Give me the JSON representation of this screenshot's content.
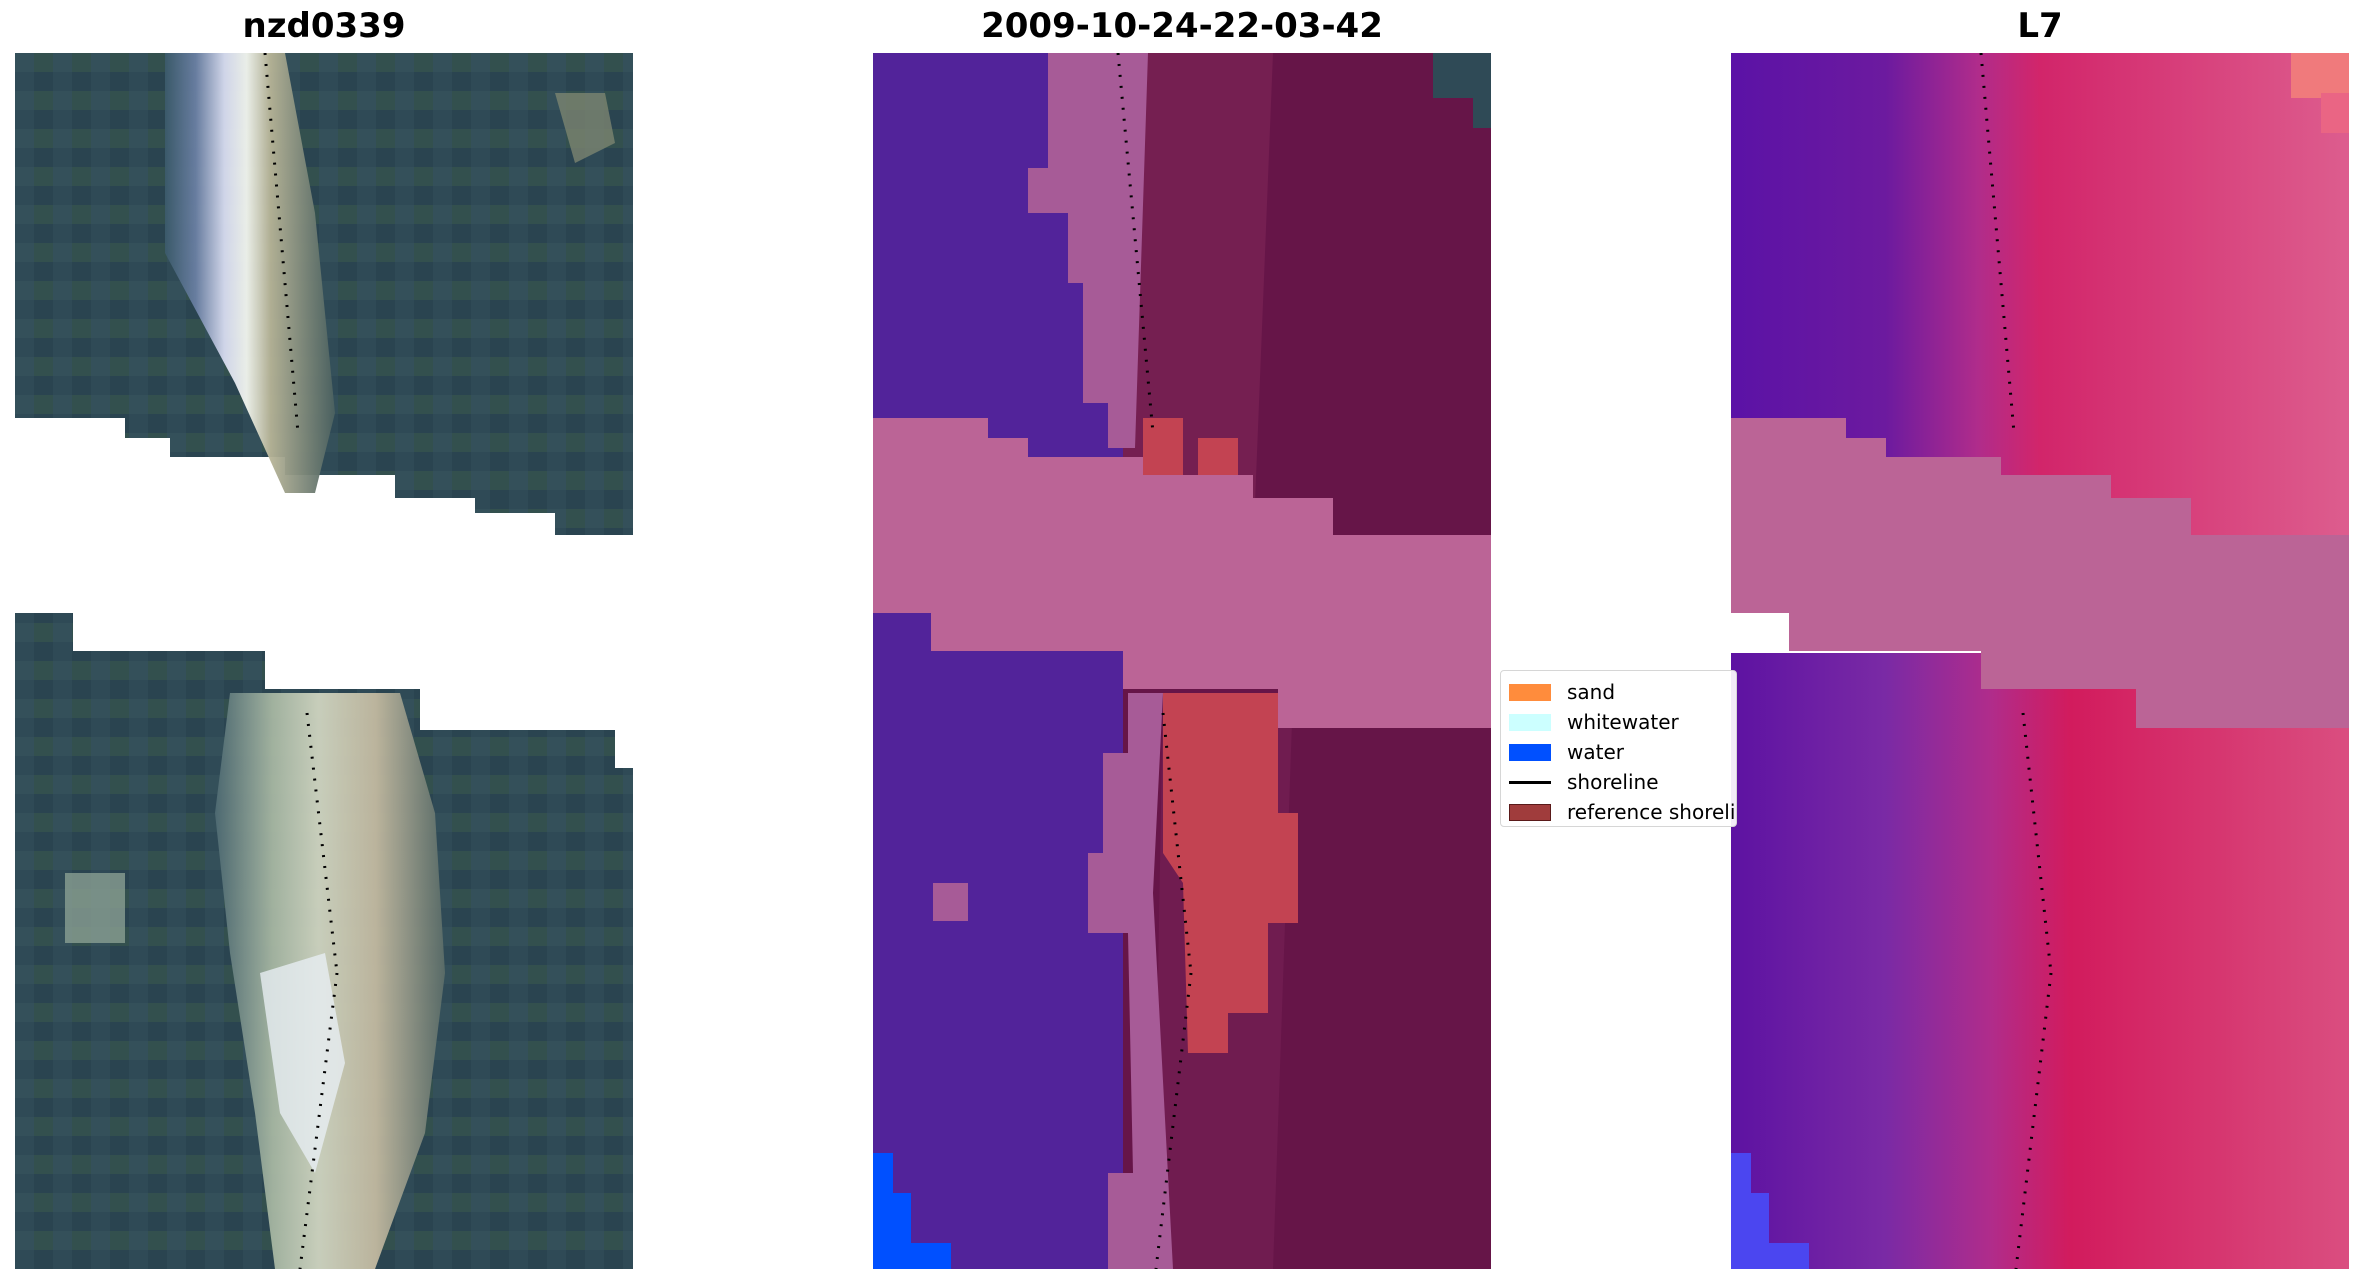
{
  "titles": {
    "site": "nzd0339",
    "date": "2009-10-24-22-03-42",
    "satellite": "L7"
  },
  "legend": [
    {
      "label": "sand",
      "color": "#ff8c3c",
      "kind": "patch"
    },
    {
      "label": "whitewater",
      "color": "#ccffff",
      "kind": "patch"
    },
    {
      "label": "water",
      "color": "#0050ff",
      "kind": "patch"
    },
    {
      "label": "shoreline",
      "color": "#000000",
      "kind": "line"
    },
    {
      "label": "reference shoreline",
      "color": "#a03c3c",
      "kind": "patch"
    }
  ],
  "colors": {
    "rgb_base": "#2f4a56",
    "rgb_sand": "#b8b39a",
    "rgb_bright": "#e8eef8",
    "class_water": "#52239a",
    "class_land": "#661548",
    "class_wash": "#a75b97",
    "class_nodata": "#bb6496",
    "class_sand": "#c34352",
    "class_ocean": "#0050ff",
    "mndwi_water": "#5a1a9e",
    "mndwi_land": "#d43f78",
    "mndwi_nodata": "#bb6496"
  }
}
